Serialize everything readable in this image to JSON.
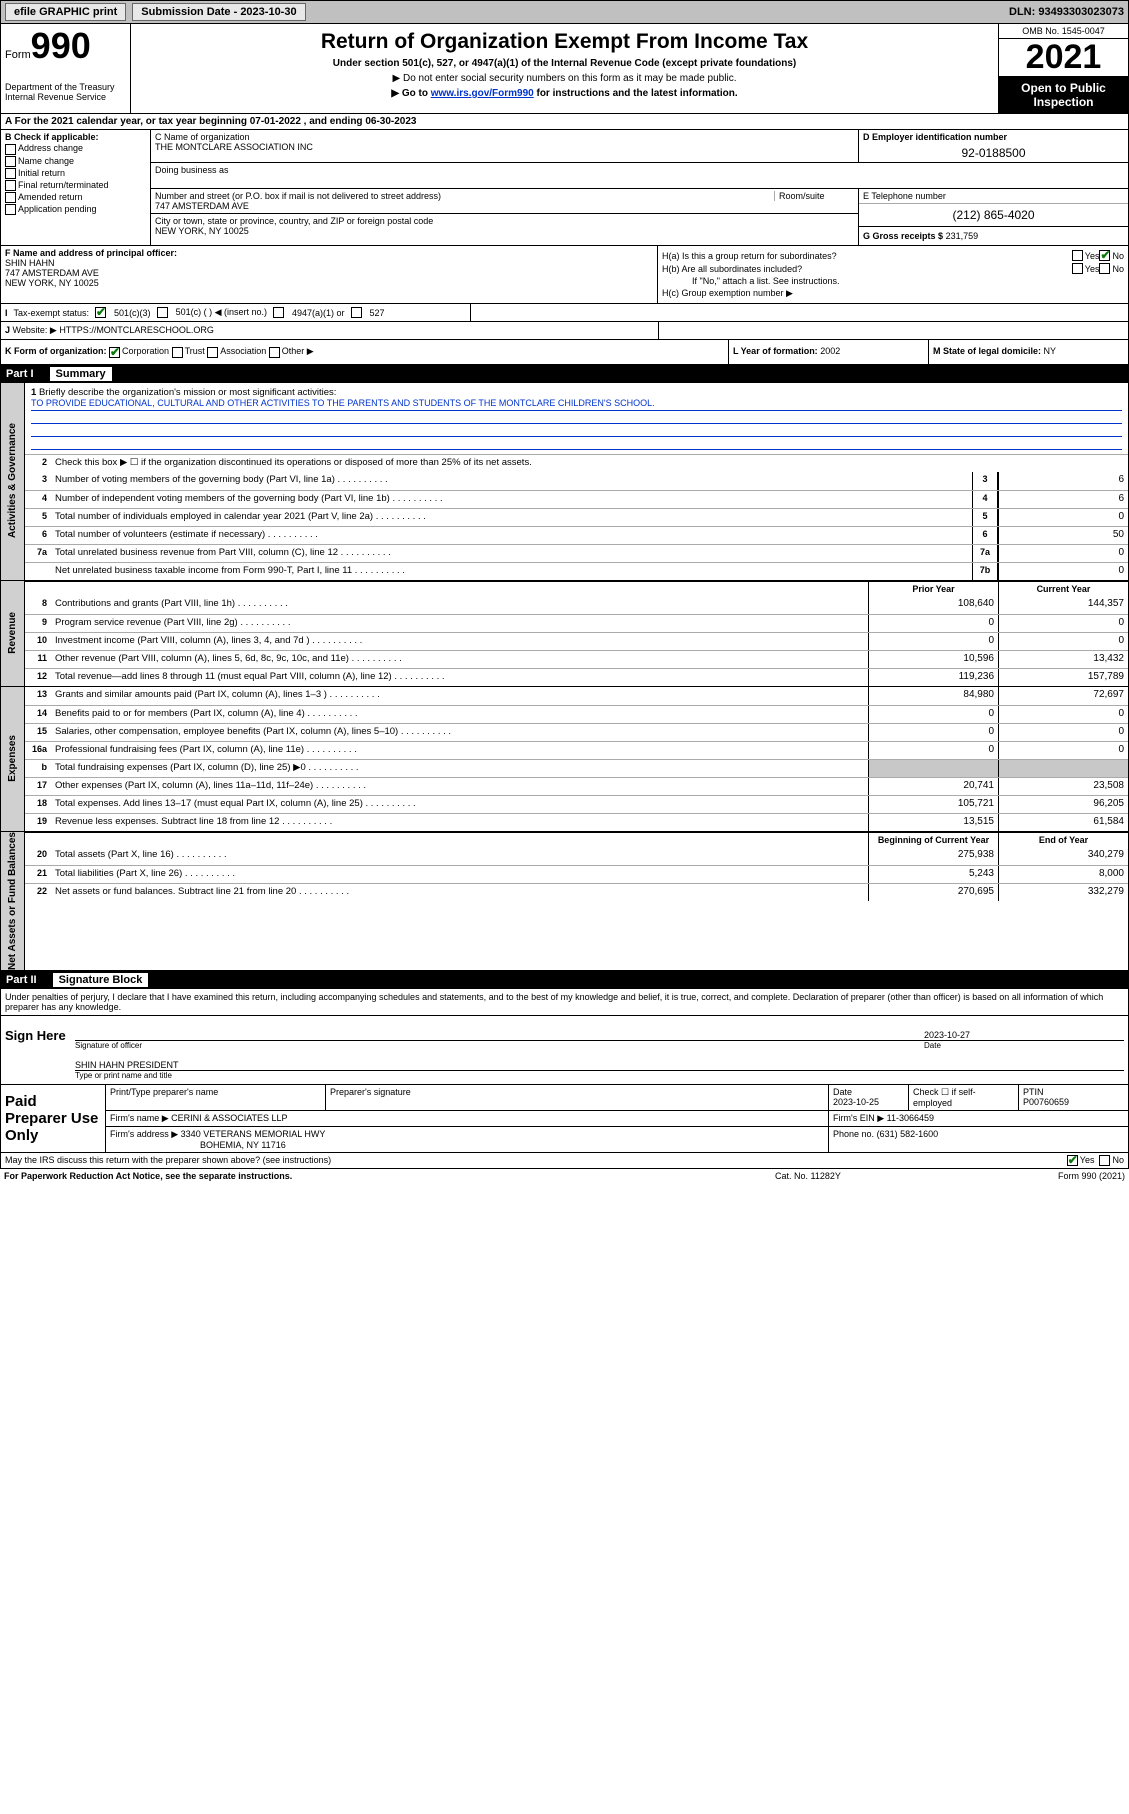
{
  "topbar": {
    "efile": "efile GRAPHIC print",
    "subdate_lbl": "Submission Date - 2023-10-30",
    "dln": "DLN: 93493303023073"
  },
  "header": {
    "form_word": "Form",
    "form_num": "990",
    "dept": "Department of the Treasury\nInternal Revenue Service",
    "title": "Return of Organization Exempt From Income Tax",
    "sub": "Under section 501(c), 527, or 4947(a)(1) of the Internal Revenue Code (except private foundations)",
    "note1": "▶ Do not enter social security numbers on this form as it may be made public.",
    "note2_pre": "▶ Go to ",
    "note2_link": "www.irs.gov/Form990",
    "note2_post": " for instructions and the latest information.",
    "omb": "OMB No. 1545-0047",
    "year": "2021",
    "inspection": "Open to Public Inspection"
  },
  "rowA": "A For the 2021 calendar year, or tax year beginning 07-01-2022   , and ending 06-30-2023",
  "boxB": {
    "hd": "B Check if applicable:",
    "items": [
      "Address change",
      "Name change",
      "Initial return",
      "Final return/terminated",
      "Amended return",
      "Application pending"
    ]
  },
  "boxC": {
    "lbl": "C Name of organization",
    "name": "THE MONTCLARE ASSOCIATION INC",
    "dba_lbl": "Doing business as",
    "addr_lbl": "Number and street (or P.O. box if mail is not delivered to street address)",
    "room_lbl": "Room/suite",
    "addr": "747 AMSTERDAM AVE",
    "city_lbl": "City or town, state or province, country, and ZIP or foreign postal code",
    "city": "NEW YORK, NY  10025"
  },
  "boxD": {
    "lbl": "D Employer identification number",
    "val": "92-0188500"
  },
  "boxE": {
    "lbl": "E Telephone number",
    "val": "(212) 865-4020"
  },
  "boxG": {
    "lbl": "G Gross receipts $",
    "val": "231,759"
  },
  "boxF": {
    "lbl": "F  Name and address of principal officer:",
    "name": "SHIN HAHN",
    "addr1": "747 AMSTERDAM AVE",
    "addr2": "NEW YORK, NY  10025"
  },
  "boxH": {
    "ha": "H(a)  Is this a group return for subordinates?",
    "hb": "H(b)  Are all subordinates included?",
    "hb_note": "If \"No,\" attach a list. See instructions.",
    "hc": "H(c)  Group exemption number ▶",
    "yes": "Yes",
    "no": "No"
  },
  "rowI": {
    "lbl": "Tax-exempt status:",
    "o1": "501(c)(3)",
    "o2": "501(c) (  ) ◀ (insert no.)",
    "o3": "4947(a)(1) or",
    "o4": "527"
  },
  "rowJ": {
    "lbl": "Website: ▶",
    "val": "HTTPS://MONTCLARESCHOOL.ORG"
  },
  "rowK": {
    "lbl": "K Form of organization:",
    "o1": "Corporation",
    "o2": "Trust",
    "o3": "Association",
    "o4": "Other ▶",
    "l_lbl": "L Year of formation:",
    "l_val": "2002",
    "m_lbl": "M State of legal domicile:",
    "m_val": "NY"
  },
  "part1": {
    "num": "Part I",
    "title": "Summary"
  },
  "summary": {
    "q1_lbl": "Briefly describe the organization's mission or most significant activities:",
    "q1_val": "TO PROVIDE EDUCATIONAL, CULTURAL AND OTHER ACTIVITIES TO THE PARENTS AND STUDENTS OF THE MONTCLARE CHILDREN'S SCHOOL.",
    "q2": "Check this box ▶ ☐  if the organization discontinued its operations or disposed of more than 25% of its net assets.",
    "lines_single": [
      {
        "n": "3",
        "t": "Number of voting members of the governing body (Part VI, line 1a)",
        "mid": "3",
        "v": "6"
      },
      {
        "n": "4",
        "t": "Number of independent voting members of the governing body (Part VI, line 1b)",
        "mid": "4",
        "v": "6"
      },
      {
        "n": "5",
        "t": "Total number of individuals employed in calendar year 2021 (Part V, line 2a)",
        "mid": "5",
        "v": "0"
      },
      {
        "n": "6",
        "t": "Total number of volunteers (estimate if necessary)",
        "mid": "6",
        "v": "50"
      },
      {
        "n": "7a",
        "t": "Total unrelated business revenue from Part VIII, column (C), line 12",
        "mid": "7a",
        "v": "0"
      },
      {
        "n": "",
        "t": "Net unrelated business taxable income from Form 990-T, Part I, line 11",
        "mid": "7b",
        "v": "0"
      }
    ],
    "col_hdr1": "Prior Year",
    "col_hdr2": "Current Year",
    "revenue": [
      {
        "n": "8",
        "t": "Contributions and grants (Part VIII, line 1h)",
        "v1": "108,640",
        "v2": "144,357"
      },
      {
        "n": "9",
        "t": "Program service revenue (Part VIII, line 2g)",
        "v1": "0",
        "v2": "0"
      },
      {
        "n": "10",
        "t": "Investment income (Part VIII, column (A), lines 3, 4, and 7d )",
        "v1": "0",
        "v2": "0"
      },
      {
        "n": "11",
        "t": "Other revenue (Part VIII, column (A), lines 5, 6d, 8c, 9c, 10c, and 11e)",
        "v1": "10,596",
        "v2": "13,432"
      },
      {
        "n": "12",
        "t": "Total revenue—add lines 8 through 11 (must equal Part VIII, column (A), line 12)",
        "v1": "119,236",
        "v2": "157,789"
      }
    ],
    "expenses": [
      {
        "n": "13",
        "t": "Grants and similar amounts paid (Part IX, column (A), lines 1–3 )",
        "v1": "84,980",
        "v2": "72,697"
      },
      {
        "n": "14",
        "t": "Benefits paid to or for members (Part IX, column (A), line 4)",
        "v1": "0",
        "v2": "0"
      },
      {
        "n": "15",
        "t": "Salaries, other compensation, employee benefits (Part IX, column (A), lines 5–10)",
        "v1": "0",
        "v2": "0"
      },
      {
        "n": "16a",
        "t": "Professional fundraising fees (Part IX, column (A), line 11e)",
        "v1": "0",
        "v2": "0"
      },
      {
        "n": "b",
        "t": "Total fundraising expenses (Part IX, column (D), line 25) ▶0",
        "v1": "",
        "v2": "",
        "gray": true
      },
      {
        "n": "17",
        "t": "Other expenses (Part IX, column (A), lines 11a–11d, 11f–24e)",
        "v1": "20,741",
        "v2": "23,508"
      },
      {
        "n": "18",
        "t": "Total expenses. Add lines 13–17 (must equal Part IX, column (A), line 25)",
        "v1": "105,721",
        "v2": "96,205"
      },
      {
        "n": "19",
        "t": "Revenue less expenses. Subtract line 18 from line 12",
        "v1": "13,515",
        "v2": "61,584"
      }
    ],
    "na_hdr1": "Beginning of Current Year",
    "na_hdr2": "End of Year",
    "netassets": [
      {
        "n": "20",
        "t": "Total assets (Part X, line 16)",
        "v1": "275,938",
        "v2": "340,279"
      },
      {
        "n": "21",
        "t": "Total liabilities (Part X, line 26)",
        "v1": "5,243",
        "v2": "8,000"
      },
      {
        "n": "22",
        "t": "Net assets or fund balances. Subtract line 21 from line 20",
        "v1": "270,695",
        "v2": "332,279"
      }
    ]
  },
  "vtabs": {
    "ag": "Activities & Governance",
    "rv": "Revenue",
    "ex": "Expenses",
    "na": "Net Assets or\nFund Balances"
  },
  "part2": {
    "num": "Part II",
    "title": "Signature Block"
  },
  "sig": {
    "decl": "Under penalties of perjury, I declare that I have examined this return, including accompanying schedules and statements, and to the best of my knowledge and belief, it is true, correct, and complete. Declaration of preparer (other than officer) is based on all information of which preparer has any knowledge.",
    "sign_here": "Sign Here",
    "sig_of_officer": "Signature of officer",
    "date": "Date",
    "sig_date": "2023-10-27",
    "name_title": "SHIN HAHN  PRESIDENT",
    "name_cap": "Type or print name and title"
  },
  "prep": {
    "title": "Paid Preparer Use Only",
    "c1": "Print/Type preparer's name",
    "c2": "Preparer's signature",
    "c3": "Date",
    "c3v": "2023-10-25",
    "c4": "Check ☐ if self-employed",
    "c5": "PTIN",
    "c5v": "P00760659",
    "firm_lbl": "Firm's name    ▶",
    "firm": "CERINI & ASSOCIATES LLP",
    "ein_lbl": "Firm's EIN ▶",
    "ein": "11-3066459",
    "addr_lbl": "Firm's address ▶",
    "addr1": "3340 VETERANS MEMORIAL HWY",
    "addr2": "BOHEMIA, NY  11716",
    "phone_lbl": "Phone no.",
    "phone": "(631) 582-1600"
  },
  "footer": {
    "q": "May the IRS discuss this return with the preparer shown above? (see instructions)",
    "yes": "Yes",
    "no": "No",
    "pra": "For Paperwork Reduction Act Notice, see the separate instructions.",
    "cat": "Cat. No. 11282Y",
    "form": "Form 990 (2021)"
  }
}
